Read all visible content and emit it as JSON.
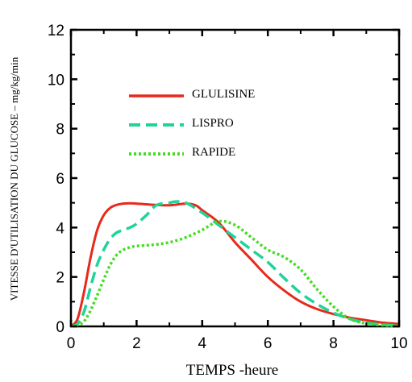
{
  "chart_data": {
    "type": "line",
    "title": "",
    "xlabel": "TEMPS -heure",
    "ylabel": "VITESSE D'UTILISATION DU GLUCOSE – mg/kg/min",
    "xlim": [
      0,
      10
    ],
    "ylim": [
      0,
      12
    ],
    "x_ticks": [
      0,
      2,
      4,
      6,
      8,
      10
    ],
    "y_ticks": [
      0,
      2,
      4,
      6,
      8,
      10,
      12
    ],
    "grid": false,
    "legend_position": "upper-center",
    "series": [
      {
        "name": "GLULISINE",
        "color": "#e8291c",
        "style": "solid",
        "x": [
          0,
          0.2,
          0.4,
          0.6,
          0.8,
          1.0,
          1.2,
          1.4,
          1.6,
          1.8,
          2.0,
          2.5,
          3.0,
          3.5,
          3.8,
          4.0,
          4.5,
          5.0,
          5.5,
          6.0,
          6.5,
          7.0,
          7.5,
          8.0,
          8.5,
          9.0,
          9.5,
          10.0
        ],
        "y": [
          0,
          0.3,
          1.4,
          2.8,
          3.9,
          4.5,
          4.8,
          4.92,
          4.97,
          4.98,
          4.97,
          4.92,
          4.9,
          4.97,
          4.9,
          4.7,
          4.2,
          3.4,
          2.7,
          2.0,
          1.45,
          1.0,
          0.7,
          0.5,
          0.35,
          0.25,
          0.15,
          0.1
        ]
      },
      {
        "name": "LISPRO",
        "color": "#1fd49a",
        "style": "dashed",
        "x": [
          0,
          0.2,
          0.4,
          0.6,
          0.8,
          1.0,
          1.2,
          1.4,
          1.6,
          1.8,
          2.0,
          2.3,
          2.6,
          3.0,
          3.2,
          3.5,
          4.0,
          4.5,
          5.0,
          5.5,
          6.0,
          6.5,
          7.0,
          7.5,
          8.0,
          8.5,
          9.0,
          9.5,
          10.0
        ],
        "y": [
          0,
          0.1,
          0.6,
          1.6,
          2.5,
          3.1,
          3.55,
          3.8,
          3.9,
          4.0,
          4.15,
          4.5,
          4.9,
          5.0,
          5.05,
          5.0,
          4.6,
          4.1,
          3.6,
          3.1,
          2.6,
          1.95,
          1.35,
          0.9,
          0.55,
          0.3,
          0.15,
          0.07,
          0.03
        ]
      },
      {
        "name": "RAPIDE",
        "color": "#44dd22",
        "style": "dotted",
        "x": [
          0,
          0.3,
          0.5,
          0.75,
          1.0,
          1.2,
          1.4,
          1.6,
          1.8,
          2.0,
          2.5,
          3.0,
          3.5,
          4.0,
          4.5,
          5.0,
          5.5,
          6.0,
          6.5,
          7.0,
          7.5,
          8.0,
          8.5,
          9.0,
          9.5,
          10.0
        ],
        "y": [
          0,
          0.1,
          0.4,
          1.1,
          1.9,
          2.5,
          2.9,
          3.1,
          3.2,
          3.25,
          3.3,
          3.4,
          3.6,
          3.9,
          4.25,
          4.1,
          3.6,
          3.1,
          2.8,
          2.3,
          1.5,
          0.8,
          0.3,
          0.12,
          0.05,
          0.02
        ]
      }
    ]
  }
}
